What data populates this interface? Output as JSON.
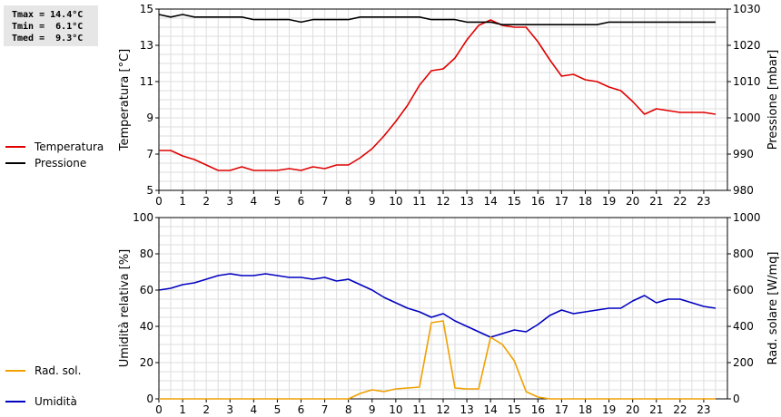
{
  "stats": {
    "tmax": "Tmax = 14.4°C",
    "tmin": "Tmin =  6.1°C",
    "tmed": "Tmed =  9.3°C"
  },
  "chart_data": [
    {
      "type": "line",
      "xlim": [
        0,
        24
      ],
      "x_ticks": [
        0,
        1,
        2,
        3,
        4,
        5,
        6,
        7,
        8,
        9,
        10,
        11,
        12,
        13,
        14,
        15,
        16,
        17,
        18,
        19,
        20,
        21,
        22,
        23
      ],
      "ylabel": "Temperatura [°C]",
      "ylim": [
        5,
        15
      ],
      "y_ticks": [
        5,
        7,
        9,
        11,
        13,
        15
      ],
      "y2label": "Pressione [mbar]",
      "y2lim": [
        980,
        1030
      ],
      "y2_ticks": [
        980,
        990,
        1000,
        1010,
        1020,
        1030
      ],
      "grid": true,
      "legend_placement": "left",
      "series": [
        {
          "name": "Temperatura",
          "color": "#e00000",
          "axis": "left",
          "x": [
            0,
            0.5,
            1,
            1.5,
            2,
            2.5,
            3,
            3.5,
            4,
            4.5,
            5,
            5.5,
            6,
            6.5,
            7,
            7.5,
            8,
            8.5,
            9,
            9.5,
            10,
            10.5,
            11,
            11.5,
            12,
            12.5,
            13,
            13.5,
            14,
            14.5,
            15,
            15.5,
            16,
            16.5,
            17,
            17.5,
            18,
            18.5,
            19,
            19.5,
            20,
            20.5,
            21,
            21.5,
            22,
            22.5,
            23,
            23.5
          ],
          "y": [
            7.2,
            7.2,
            6.9,
            6.7,
            6.4,
            6.1,
            6.1,
            6.3,
            6.1,
            6.1,
            6.1,
            6.2,
            6.1,
            6.3,
            6.2,
            6.4,
            6.4,
            6.8,
            7.3,
            8.0,
            8.8,
            9.7,
            10.8,
            11.6,
            11.7,
            12.3,
            13.3,
            14.1,
            14.4,
            14.1,
            14.0,
            14.0,
            13.2,
            12.2,
            11.3,
            11.4,
            11.1,
            11.0,
            10.7,
            10.5,
            9.9,
            9.2,
            9.5,
            9.4,
            9.3,
            9.3,
            9.3,
            9.2
          ]
        },
        {
          "name": "Pressione",
          "color": "#000000",
          "axis": "right",
          "x": [
            0,
            0.5,
            1,
            1.5,
            2,
            2.5,
            3,
            3.5,
            4,
            4.5,
            5,
            5.5,
            6,
            6.5,
            7,
            7.5,
            8,
            8.5,
            9,
            9.5,
            10,
            10.5,
            11,
            11.5,
            12,
            12.5,
            13,
            13.5,
            14,
            14.5,
            15,
            15.5,
            16,
            16.5,
            17,
            17.5,
            18,
            18.5,
            19,
            19.5,
            20,
            20.5,
            21,
            21.5,
            22,
            22.5,
            23,
            23.5
          ],
          "y": [
            1028.5,
            1027.8,
            1028.5,
            1027.8,
            1027.8,
            1027.8,
            1027.8,
            1027.8,
            1027.1,
            1027.1,
            1027.1,
            1027.1,
            1026.4,
            1027.1,
            1027.1,
            1027.1,
            1027.1,
            1027.8,
            1027.8,
            1027.8,
            1027.8,
            1027.8,
            1027.8,
            1027.1,
            1027.1,
            1027.1,
            1026.4,
            1026.4,
            1026.4,
            1025.7,
            1025.7,
            1025.7,
            1025.7,
            1025.7,
            1025.7,
            1025.7,
            1025.7,
            1025.7,
            1026.4,
            1026.4,
            1026.4,
            1026.4,
            1026.4,
            1026.4,
            1026.4,
            1026.4,
            1026.4,
            1026.4
          ]
        }
      ]
    },
    {
      "type": "line",
      "xlim": [
        0,
        24
      ],
      "x_ticks": [
        0,
        1,
        2,
        3,
        4,
        5,
        6,
        7,
        8,
        9,
        10,
        11,
        12,
        13,
        14,
        15,
        16,
        17,
        18,
        19,
        20,
        21,
        22,
        23
      ],
      "ylabel": "Umidità relativa [%]",
      "ylim": [
        0,
        100
      ],
      "y_ticks": [
        0,
        20,
        40,
        60,
        80,
        100
      ],
      "y2label": "Rad. solare [W/mq]",
      "y2lim": [
        0,
        1000
      ],
      "y2_ticks": [
        0,
        200,
        400,
        600,
        800,
        1000
      ],
      "grid": true,
      "legend_placement": "left",
      "series": [
        {
          "name": "Umidità",
          "color": "#0000c0",
          "axis": "left",
          "x": [
            0,
            0.5,
            1,
            1.5,
            2,
            2.5,
            3,
            3.5,
            4,
            4.5,
            5,
            5.5,
            6,
            6.5,
            7,
            7.5,
            8,
            8.5,
            9,
            9.5,
            10,
            10.5,
            11,
            11.5,
            12,
            12.5,
            13,
            13.5,
            14,
            14.5,
            15,
            15.5,
            16,
            16.5,
            17,
            17.5,
            18,
            18.5,
            19,
            19.5,
            20,
            20.5,
            21,
            21.5,
            22,
            22.5,
            23,
            23.5
          ],
          "y": [
            60,
            61,
            63,
            64,
            66,
            68,
            69,
            68,
            68,
            69,
            68,
            67,
            67,
            66,
            67,
            65,
            66,
            63,
            60,
            56,
            53,
            50,
            48,
            45,
            47,
            43,
            40,
            37,
            34,
            36,
            38,
            37,
            41,
            46,
            49,
            47,
            48,
            49,
            50,
            50,
            54,
            57,
            53,
            55,
            55,
            53,
            51,
            50
          ]
        },
        {
          "name": "Rad. sol.",
          "color": "#f0a000",
          "axis": "right",
          "x": [
            0,
            0.5,
            1,
            1.5,
            2,
            2.5,
            3,
            3.5,
            4,
            4.5,
            5,
            5.5,
            6,
            6.5,
            7,
            7.5,
            8,
            8.5,
            9,
            9.5,
            10,
            10.5,
            11,
            11.5,
            12,
            12.5,
            13,
            13.5,
            14,
            14.5,
            15,
            15.5,
            16,
            16.5,
            17,
            17.5,
            18,
            18.5,
            19,
            19.5,
            20,
            20.5,
            21,
            21.5,
            22,
            22.5,
            23,
            23.5
          ],
          "y": [
            0,
            0,
            0,
            0,
            0,
            0,
            0,
            0,
            0,
            0,
            0,
            0,
            0,
            0,
            0,
            0,
            0,
            30,
            50,
            40,
            55,
            60,
            65,
            420,
            430,
            60,
            55,
            55,
            340,
            300,
            210,
            40,
            10,
            0,
            0,
            0,
            0,
            0,
            0,
            0,
            0,
            0,
            0,
            0,
            0,
            0,
            0,
            0
          ]
        }
      ]
    }
  ]
}
